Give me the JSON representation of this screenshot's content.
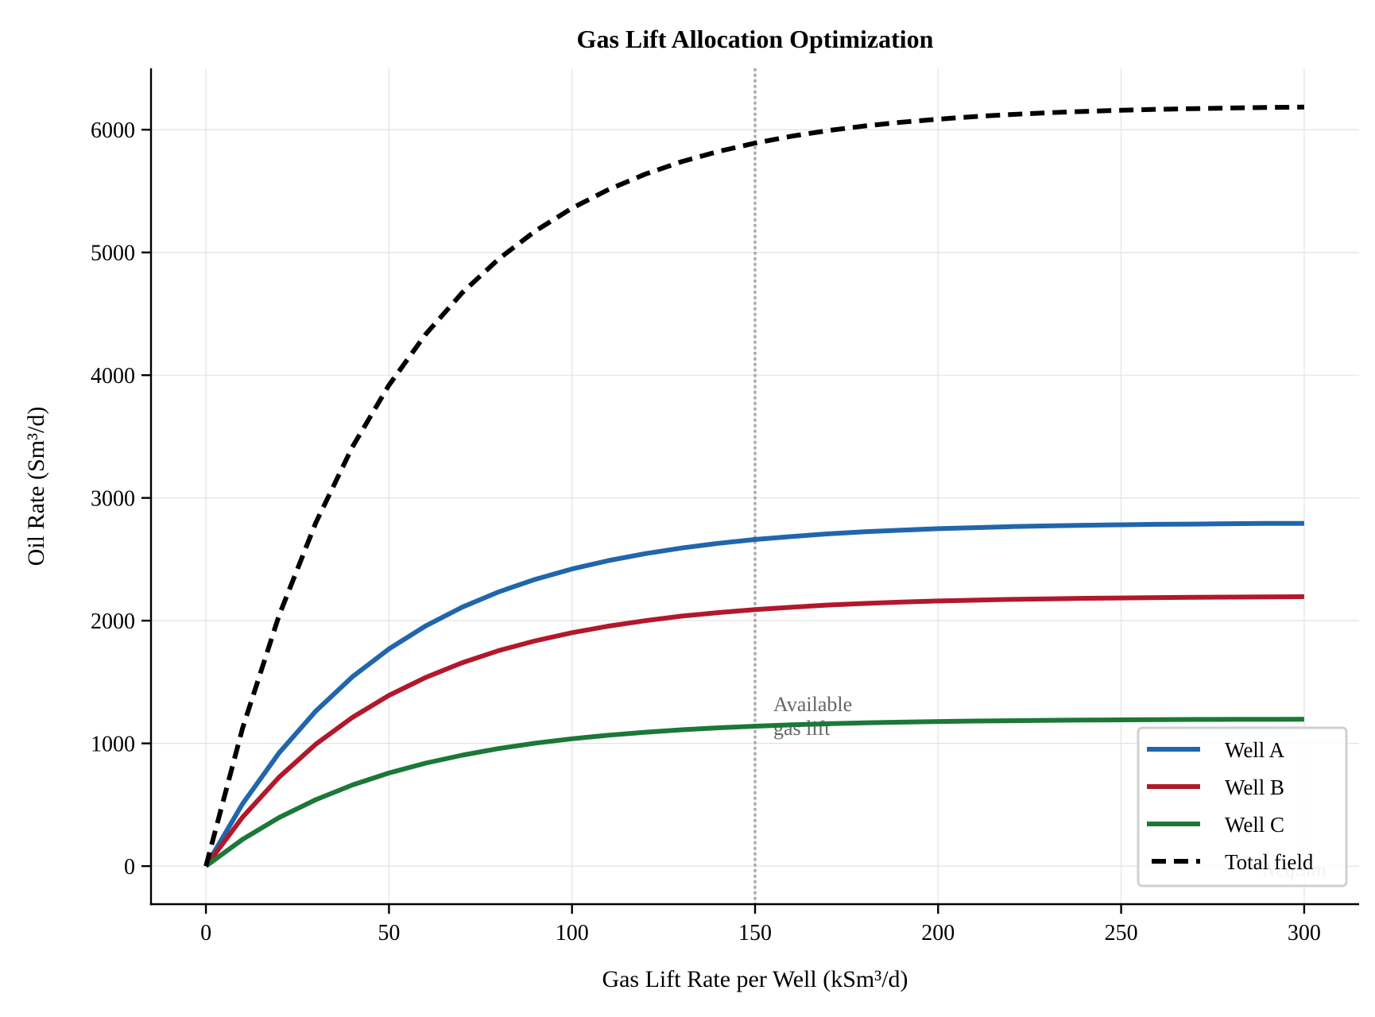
{
  "chart_data": {
    "type": "line",
    "title": "Gas Lift Allocation Optimization",
    "xlabel": "Gas Lift Rate per Well (kSm³/d)",
    "ylabel": "Oil Rate (Sm³/d)",
    "xlim": [
      -15,
      315
    ],
    "ylim": [
      -310,
      6500
    ],
    "xticks": [
      0,
      50,
      100,
      150,
      200,
      250,
      300
    ],
    "yticks": [
      0,
      1000,
      2000,
      3000,
      4000,
      5000,
      6000
    ],
    "grid": true,
    "legend_position": "lower-right",
    "x": [
      0,
      10,
      20,
      30,
      40,
      50,
      60,
      70,
      80,
      90,
      100,
      110,
      120,
      130,
      140,
      150,
      160,
      170,
      180,
      190,
      200,
      210,
      220,
      230,
      240,
      250,
      260,
      270,
      280,
      290,
      300
    ],
    "series": [
      {
        "name": "Well A",
        "color": "#2166ac",
        "style": "solid",
        "values": [
          0,
          508,
          923,
          1263,
          1542,
          1770,
          1957,
          2110,
          2235,
          2337,
          2421,
          2490,
          2546,
          2592,
          2630,
          2661,
          2686,
          2707,
          2724,
          2737,
          2749,
          2758,
          2766,
          2772,
          2777,
          2781,
          2785,
          2787,
          2790,
          2792,
          2793
        ]
      },
      {
        "name": "Well B",
        "color": "#b2182b",
        "style": "solid",
        "values": [
          0,
          399,
          725,
          993,
          1211,
          1391,
          1537,
          1657,
          1756,
          1836,
          1902,
          1956,
          2000,
          2037,
          2066,
          2090,
          2110,
          2127,
          2140,
          2151,
          2160,
          2167,
          2173,
          2178,
          2182,
          2185,
          2188,
          2190,
          2192,
          2193,
          2195
        ]
      },
      {
        "name": "Well C",
        "color": "#1b7837",
        "style": "solid",
        "values": [
          0,
          218,
          396,
          541,
          661,
          759,
          839,
          904,
          958,
          1002,
          1038,
          1067,
          1091,
          1111,
          1127,
          1140,
          1151,
          1160,
          1167,
          1173,
          1178,
          1182,
          1185,
          1188,
          1190,
          1192,
          1193,
          1195,
          1196,
          1196,
          1197
        ]
      },
      {
        "name": "Total field",
        "color": "#000000",
        "style": "dashed",
        "values": [
          0,
          1124,
          2044,
          2797,
          3414,
          3919,
          4333,
          4671,
          4948,
          5175,
          5361,
          5513,
          5638,
          5740,
          5823,
          5891,
          5947,
          5993,
          6031,
          6061,
          6086,
          6107,
          6124,
          6138,
          6149,
          6158,
          6166,
          6172,
          6177,
          6181,
          6185
        ]
      }
    ],
    "vline": {
      "x": 150,
      "color": "#aaaaaa",
      "style": "dotted"
    },
    "annotation": {
      "lines": [
        "Available",
        "gas lift"
      ],
      "x": 155,
      "color": "#666666"
    },
    "watermark": "NeqSim"
  }
}
